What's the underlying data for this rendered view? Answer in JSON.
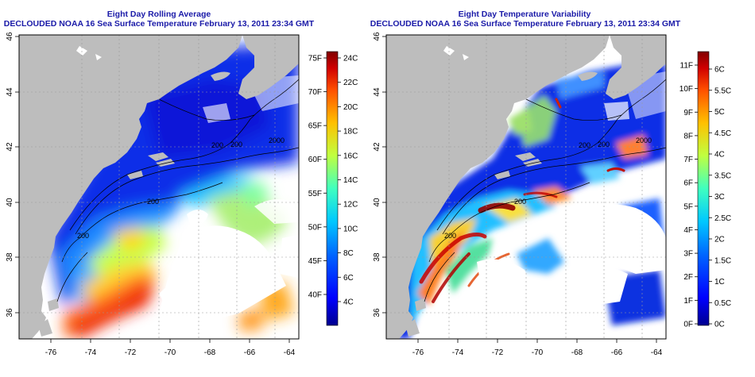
{
  "panels": [
    {
      "title": "Eight Day Rolling Average",
      "subtitle": "DECLOUDED NOAA 16 Sea Surface Temperature February 13, 2011 23:34 GMT",
      "colorbar": {
        "f_labels": [
          "75F",
          "70F",
          "65F",
          "60F",
          "55F",
          "50F",
          "45F",
          "40F"
        ],
        "c_labels": [
          "24C",
          "22C",
          "20C",
          "18C",
          "16C",
          "14C",
          "12C",
          "10C",
          "8C",
          "6C",
          "4C"
        ]
      },
      "contour_labels": [
        "200",
        "200",
        "200",
        "2000",
        "200"
      ]
    },
    {
      "title": "Eight Day Temperature Variability",
      "subtitle": "DECLOUDED NOAA 16 Sea Surface Temperature February 13, 2011 23:34 GMT",
      "colorbar": {
        "f_labels": [
          "11F",
          "10F",
          "9F",
          "8F",
          "7F",
          "6F",
          "5F",
          "4F",
          "3F",
          "2F",
          "1F",
          "0F"
        ],
        "c_labels": [
          "6C",
          "5.5C",
          "5C",
          "4.5C",
          "4C",
          "3.5C",
          "3C",
          "2.5C",
          "2C",
          "1.5C",
          "1C",
          "0.5C",
          "0C"
        ]
      },
      "contour_labels": [
        "200",
        "200",
        "200",
        "2000",
        "200"
      ]
    }
  ],
  "axes": {
    "lon_ticks": [
      "-76",
      "-74",
      "-72",
      "-70",
      "-68",
      "-66",
      "-64"
    ],
    "lat_ticks": [
      "46",
      "44",
      "42",
      "40",
      "38",
      "36"
    ]
  },
  "colors": {
    "land": "#bdbdbd",
    "ocean_missing": "#ffffff",
    "title": "#1a1aa8",
    "colormap": [
      "#00008f",
      "#0000ff",
      "#0060ff",
      "#00c0ff",
      "#40ffbf",
      "#c0ff40",
      "#ffc000",
      "#ff6000",
      "#e00000",
      "#800000"
    ]
  }
}
